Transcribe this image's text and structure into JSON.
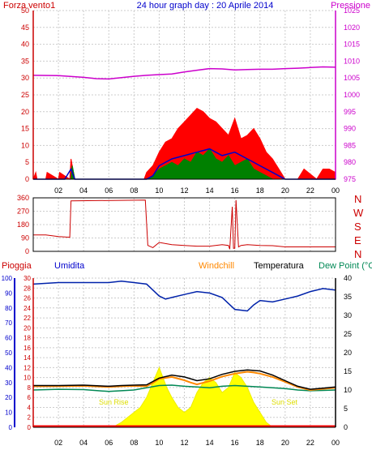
{
  "header": {
    "left_label": "Forza vento1",
    "title": "24 hour graph day : 20 Aprile 2014",
    "right_label": "Pressione"
  },
  "mid_labels": {
    "pioggia": "Pioggia",
    "umidita": "Umidita",
    "windchill": "Windchill",
    "temperatura": "Temperatura",
    "dew_point": "Dew Point (°C",
    "sun_rise": "Sun Rise",
    "sun_set": "Sun Set"
  },
  "compass": [
    "N",
    "W",
    "S",
    "E",
    "N"
  ],
  "colors": {
    "wind": "#ff0000",
    "gust_fill": "#008000",
    "wind_avg": "#0000cc",
    "pressure": "#cc00cc",
    "direction": "#cc0000",
    "humidity": "#0022aa",
    "temperature": "#000000",
    "windchill": "#ff8800",
    "dewpoint": "#008855",
    "solar": "#ffff00",
    "rain": "#ff0000",
    "grid": "#cccccc",
    "axis_text_red": "#cc0000",
    "axis_text_purple": "#cc00cc",
    "axis_text_blue": "#0000cc"
  },
  "chart_data": [
    {
      "type": "line",
      "name": "wind_pressure",
      "x_ticks": [
        "02",
        "04",
        "06",
        "08",
        "10",
        "12",
        "14",
        "16",
        "18",
        "20",
        "22",
        "00"
      ],
      "y_left_ticks": [
        0,
        5,
        10,
        15,
        20,
        25,
        30,
        35,
        40,
        45,
        50
      ],
      "y_left_range": [
        0,
        50
      ],
      "y_right_ticks": [
        975,
        980,
        985,
        990,
        995,
        1000,
        1005,
        1010,
        1015,
        1020,
        1025
      ],
      "y_right_range": [
        975,
        1025
      ],
      "x_range": [
        0,
        24
      ],
      "grid": true,
      "series": [
        {
          "key": "pressure",
          "axis": "right",
          "x": [
            0,
            2,
            4,
            5,
            6,
            7,
            8,
            9,
            10,
            11,
            12,
            13,
            14,
            15,
            16,
            17,
            18,
            19,
            20,
            21,
            22,
            23,
            24
          ],
          "y": [
            1005.8,
            1005.7,
            1005.2,
            1004.8,
            1004.7,
            1005.1,
            1005.5,
            1005.8,
            1006.0,
            1006.2,
            1006.8,
            1007.3,
            1007.8,
            1007.7,
            1007.4,
            1007.5,
            1007.6,
            1007.6,
            1007.8,
            1007.9,
            1008.1,
            1008.3,
            1008.2
          ]
        },
        {
          "key": "wind_avg",
          "axis": "left",
          "x": [
            0,
            2.5,
            3,
            3.3,
            4,
            9,
            9.5,
            10,
            11,
            12,
            13,
            14,
            15,
            16,
            17,
            18,
            19,
            20,
            24
          ],
          "y": [
            0,
            0,
            3,
            0,
            0,
            0,
            1,
            4,
            6,
            7,
            8,
            9,
            7,
            8,
            6,
            4,
            2,
            0,
            0
          ]
        },
        {
          "key": "wind",
          "axis": "left",
          "x": [
            0,
            0.2,
            0.3,
            1,
            1.1,
            2,
            2.1,
            2.9,
            3,
            3.2,
            3.3,
            4,
            8.8,
            9,
            9.5,
            10,
            10.5,
            11,
            11.5,
            12,
            12.5,
            13,
            13.5,
            14,
            14.5,
            15,
            15.5,
            16,
            16.5,
            17,
            17.5,
            18,
            18.5,
            19,
            19.5,
            20,
            21,
            21.5,
            22.5,
            23,
            23.5,
            24
          ],
          "y": [
            0,
            2,
            0,
            0,
            2,
            0,
            2,
            0,
            6,
            2,
            0,
            0,
            0,
            2,
            4,
            8,
            11,
            12,
            15,
            17,
            19,
            21,
            20,
            18,
            17,
            15,
            13,
            18,
            12,
            13,
            15,
            12,
            8,
            6,
            3,
            0,
            0,
            3,
            0,
            3,
            3,
            2
          ]
        },
        {
          "key": "gust",
          "axis": "left",
          "x": [
            0,
            3,
            3.1,
            3.3,
            9,
            9.5,
            10,
            10.5,
            11,
            11.5,
            12,
            12.5,
            13,
            13.5,
            14,
            14.5,
            15,
            15.5,
            16,
            16.5,
            17,
            17.5,
            18,
            19,
            24
          ],
          "y": [
            0,
            0,
            4,
            0,
            0,
            1,
            3,
            4,
            5,
            4,
            6,
            5,
            8,
            7,
            9,
            6,
            5,
            7,
            4,
            5,
            6,
            3,
            2,
            0,
            0
          ]
        }
      ]
    },
    {
      "type": "line",
      "name": "wind_direction",
      "x_ticks": [
        "02",
        "04",
        "06",
        "08",
        "10",
        "12",
        "14",
        "16",
        "18",
        "20",
        "22",
        "00"
      ],
      "y_left_ticks": [
        0,
        90,
        180,
        270,
        360
      ],
      "y_left_range": [
        0,
        360
      ],
      "x_range": [
        0,
        24
      ],
      "grid": true,
      "series": [
        {
          "key": "direction",
          "x": [
            0,
            1,
            2,
            2.9,
            3,
            8.9,
            9.1,
            9.5,
            10,
            11,
            12,
            13,
            14,
            15,
            15.5,
            15.6,
            15.8,
            15.9,
            16,
            16.1,
            16.3,
            16.5,
            17,
            18,
            19,
            20,
            21,
            24
          ],
          "y": [
            110,
            110,
            100,
            95,
            340,
            345,
            40,
            25,
            60,
            45,
            40,
            35,
            35,
            45,
            40,
            15,
            300,
            20,
            20,
            345,
            30,
            40,
            45,
            40,
            38,
            30,
            30,
            30
          ]
        }
      ]
    },
    {
      "type": "line",
      "name": "temp_humidity_rain",
      "x_ticks": [
        "02",
        "04",
        "06",
        "08",
        "10",
        "12",
        "14",
        "16",
        "18",
        "20",
        "22",
        "00"
      ],
      "y_left_humidity_ticks": [
        0,
        10,
        20,
        30,
        40,
        50,
        60,
        70,
        80,
        90,
        100
      ],
      "y_left_humidity_range": [
        0,
        100
      ],
      "y_left_rain_ticks": [
        0,
        2,
        4,
        6,
        8,
        10,
        12,
        14,
        16,
        18,
        20,
        22,
        24,
        26,
        28,
        30
      ],
      "y_left_rain_range": [
        0,
        30
      ],
      "y_right_ticks": [
        0,
        5,
        10,
        15,
        20,
        25,
        30,
        35,
        40
      ],
      "y_right_range": [
        0,
        40
      ],
      "x_range": [
        0,
        24
      ],
      "grid": true,
      "series": [
        {
          "key": "humidity",
          "axis": "humidity",
          "x": [
            0,
            2,
            3,
            4,
            5,
            6,
            7,
            8,
            9,
            9.5,
            10,
            10.5,
            11,
            12,
            13,
            14,
            15,
            15.5,
            16,
            17,
            17.5,
            18,
            19,
            20,
            21,
            22,
            23,
            24
          ],
          "y": [
            96,
            97,
            97,
            97,
            97,
            97,
            98,
            97,
            96,
            92,
            88,
            86,
            87,
            89,
            91,
            90,
            87,
            83,
            79,
            78,
            82,
            85,
            84,
            86,
            88,
            91,
            93,
            92
          ]
        },
        {
          "key": "temperature",
          "axis": "right",
          "x": [
            0,
            2,
            4,
            6,
            7,
            8,
            9,
            10,
            11,
            12,
            13,
            14,
            15,
            16,
            17,
            18,
            19,
            20,
            21,
            22,
            23,
            24
          ],
          "y": [
            11.2,
            11.2,
            11.3,
            11.0,
            11.2,
            11.3,
            11.4,
            13.2,
            14.0,
            13.5,
            12.5,
            13.0,
            14.2,
            15.0,
            15.4,
            15.1,
            14.0,
            12.5,
            11.0,
            10.2,
            10.5,
            10.8
          ]
        },
        {
          "key": "windchill",
          "axis": "right",
          "x": [
            0,
            2,
            4,
            6,
            7,
            8,
            9,
            9.5,
            10,
            11,
            12,
            12.5,
            13,
            14,
            15,
            16,
            17,
            17.5,
            18,
            19,
            20,
            21,
            22,
            23,
            24
          ],
          "y": [
            11.0,
            11.0,
            11.1,
            10.8,
            11.0,
            11.1,
            11.0,
            11.9,
            13.0,
            13.5,
            12.6,
            12.0,
            11.5,
            12.4,
            13.6,
            14.4,
            14.9,
            14.7,
            14.4,
            13.5,
            12.2,
            10.8,
            10.0,
            10.3,
            10.6
          ]
        },
        {
          "key": "dewpoint",
          "axis": "right",
          "x": [
            0,
            2,
            4,
            6,
            8,
            9,
            10,
            11,
            12,
            13,
            14,
            15,
            16,
            17,
            18,
            19,
            20,
            21,
            22,
            23,
            24
          ],
          "y": [
            10.0,
            10.2,
            10.1,
            9.6,
            10.0,
            10.6,
            11.2,
            11.3,
            11.0,
            10.8,
            10.6,
            11.0,
            11.2,
            11.0,
            10.8,
            10.6,
            10.4,
            10.0,
            9.8,
            9.9,
            10.0
          ]
        },
        {
          "key": "solar",
          "axis": "rain",
          "x": [
            6.3,
            7,
            8,
            8.5,
            9,
            9.5,
            10,
            10.3,
            10.6,
            11,
            11.5,
            12,
            12.5,
            13,
            13.5,
            14,
            14.5,
            15,
            15.5,
            16,
            16.5,
            17,
            17.5,
            18,
            18.5,
            19
          ],
          "y": [
            0,
            1,
            3,
            4,
            6,
            9,
            12,
            10,
            8,
            6,
            4,
            3,
            4,
            7,
            9,
            10,
            9,
            7,
            8,
            11,
            10,
            8,
            5,
            3,
            1,
            0
          ]
        },
        {
          "key": "rain",
          "axis": "rain",
          "x": [
            0,
            24
          ],
          "y": [
            0,
            0
          ]
        }
      ]
    }
  ]
}
